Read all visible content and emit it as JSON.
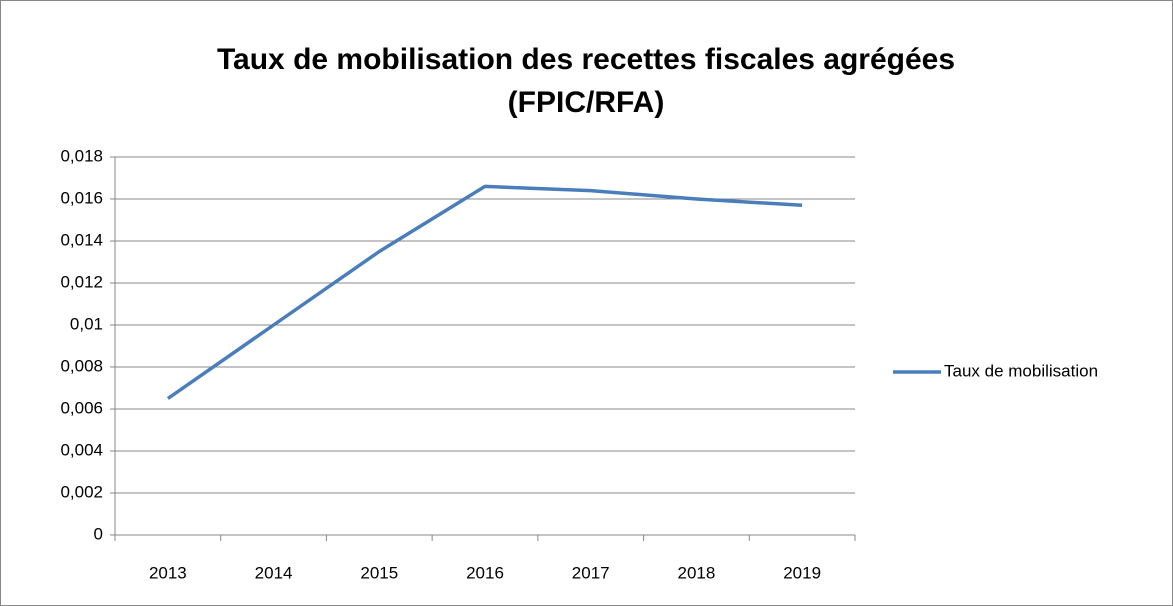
{
  "chart_data": {
    "type": "line",
    "title": "Taux de mobilisation des recettes fiscales agrégées (FPIC/RFA)",
    "categories": [
      "2013",
      "2014",
      "2015",
      "2016",
      "2017",
      "2018",
      "2019"
    ],
    "series": [
      {
        "name": "Taux de mobilisation",
        "color": "#4a7ebb",
        "values": [
          0.0065,
          0.01,
          0.0135,
          0.0166,
          0.0164,
          0.016,
          0.0157
        ]
      }
    ],
    "ylim": [
      0,
      0.018
    ],
    "yticks": [
      0,
      {
        "value": 0.002,
        "label": "0,002"
      },
      {
        "value": 0.004,
        "label": "0,004"
      },
      {
        "value": 0.006,
        "label": "0,006"
      },
      {
        "value": 0.008,
        "label": "0,008"
      },
      {
        "value": 0.01,
        "label": "0,01"
      },
      {
        "value": 0.012,
        "label": "0,012"
      },
      {
        "value": 0.014,
        "label": "0,014"
      },
      {
        "value": 0.016,
        "label": "0,016"
      },
      {
        "value": 0.018,
        "label": "0,018"
      }
    ],
    "grid": true,
    "legend": "right"
  }
}
